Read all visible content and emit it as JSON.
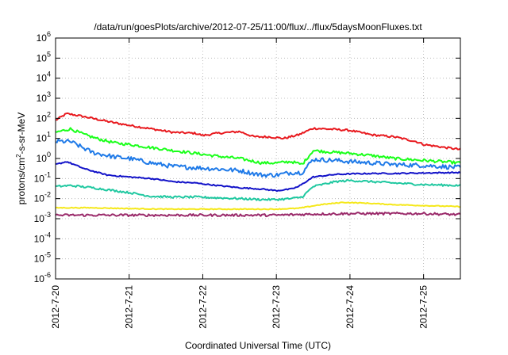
{
  "chart_data": {
    "type": "line",
    "title": "/data/run/goesPlots/archive/2012-07-25/11:00/flux/../flux/5daysMoonFluxes.txt",
    "xlabel": "Coordinated Universal Time (UTC)",
    "ylabel": {
      "prefix": "protons/cm",
      "sup": "2",
      "suffix": "-s-sr-MeV"
    },
    "xlim": [
      0,
      5.5
    ],
    "ylim_exponent": [
      -6,
      6
    ],
    "yscale": "log",
    "grid": true,
    "x_ticks": [
      {
        "x": 0,
        "label": "2012-7-20"
      },
      {
        "x": 1,
        "label": "2012-7-21"
      },
      {
        "x": 2,
        "label": "2012-7-22"
      },
      {
        "x": 3,
        "label": "2012-7-23"
      },
      {
        "x": 4,
        "label": "2012-7-24"
      },
      {
        "x": 5,
        "label": "2012-7-25"
      }
    ],
    "y_ticks": [
      {
        "exp": -6,
        "label_base": "10",
        "label_exp": "-6"
      },
      {
        "exp": -5,
        "label_base": "10",
        "label_exp": "-5"
      },
      {
        "exp": -4,
        "label_base": "10",
        "label_exp": "-4"
      },
      {
        "exp": -3,
        "label_base": "10",
        "label_exp": "-3"
      },
      {
        "exp": -2,
        "label_base": "10",
        "label_exp": "-2"
      },
      {
        "exp": -1,
        "label_base": "10",
        "label_exp": "-1"
      },
      {
        "exp": 0,
        "label_base": "10",
        "label_exp": "0"
      },
      {
        "exp": 1,
        "label_base": "10",
        "label_exp": "1"
      },
      {
        "exp": 2,
        "label_base": "10",
        "label_exp": "2"
      },
      {
        "exp": 3,
        "label_base": "10",
        "label_exp": "3"
      },
      {
        "exp": 4,
        "label_base": "10",
        "label_exp": "4"
      },
      {
        "exp": 5,
        "label_base": "10",
        "label_exp": "5"
      },
      {
        "exp": 6,
        "label_base": "10",
        "label_exp": "6"
      }
    ],
    "series": [
      {
        "color": "#e8191e",
        "noise": 0.05,
        "x": [
          0,
          0.15,
          0.3,
          0.5,
          0.8,
          1.0,
          1.3,
          1.6,
          1.9,
          2.0,
          2.2,
          2.5,
          2.7,
          2.9,
          3.1,
          3.3,
          3.5,
          3.8,
          4.0,
          4.3,
          4.6,
          4.9,
          5.0,
          5.3,
          5.5
        ],
        "y": [
          80,
          170,
          140,
          100,
          60,
          45,
          30,
          20,
          18,
          14,
          18,
          22,
          12,
          12,
          10,
          15,
          32,
          28,
          25,
          15,
          12,
          7,
          5,
          3.5,
          2.8
        ]
      },
      {
        "color": "#1aff1a",
        "noise": 0.07,
        "x": [
          0,
          0.2,
          0.4,
          0.6,
          0.8,
          1.0,
          1.3,
          1.6,
          1.9,
          2.2,
          2.5,
          2.8,
          3.0,
          3.2,
          3.35,
          3.5,
          3.8,
          4.0,
          4.3,
          4.6,
          5.0,
          5.5
        ],
        "y": [
          20,
          30,
          15,
          9,
          6,
          5,
          3.5,
          2.5,
          1.8,
          1.3,
          1.0,
          0.6,
          0.6,
          0.7,
          0.5,
          2.5,
          2.0,
          1.8,
          1.4,
          1.0,
          0.8,
          0.6
        ]
      },
      {
        "color": "#1f7ae8",
        "noise": 0.11,
        "x": [
          0,
          0.2,
          0.5,
          0.8,
          1.0,
          1.3,
          1.6,
          1.9,
          2.2,
          2.5,
          2.8,
          3.0,
          3.2,
          3.35,
          3.5,
          3.8,
          4.0,
          4.3,
          4.6,
          5.0,
          5.5
        ],
        "y": [
          7,
          7,
          2,
          1.2,
          1.0,
          0.6,
          0.4,
          0.35,
          0.3,
          0.25,
          0.15,
          0.15,
          0.2,
          0.2,
          0.9,
          0.8,
          0.7,
          0.6,
          0.5,
          0.45,
          0.35
        ]
      },
      {
        "color": "#1111c8",
        "noise": 0.03,
        "x": [
          0,
          0.15,
          0.4,
          0.7,
          1.0,
          1.3,
          1.6,
          1.9,
          2.2,
          2.5,
          2.8,
          3.0,
          3.2,
          3.3,
          3.5,
          3.8,
          4.0,
          4.3,
          4.6,
          5.0,
          5.5
        ],
        "y": [
          0.5,
          0.7,
          0.3,
          0.15,
          0.12,
          0.1,
          0.07,
          0.06,
          0.045,
          0.035,
          0.03,
          0.025,
          0.03,
          0.04,
          0.12,
          0.16,
          0.17,
          0.18,
          0.18,
          0.19,
          0.2
        ]
      },
      {
        "color": "#1fc8a0",
        "noise": 0.05,
        "x": [
          0,
          0.2,
          0.5,
          0.8,
          1.0,
          1.3,
          1.6,
          1.9,
          2.2,
          2.5,
          2.8,
          3.0,
          3.2,
          3.35,
          3.5,
          3.8,
          4.0,
          4.3,
          4.6,
          5.0,
          5.5
        ],
        "y": [
          0.04,
          0.045,
          0.035,
          0.025,
          0.02,
          0.013,
          0.012,
          0.012,
          0.011,
          0.01,
          0.009,
          0.009,
          0.01,
          0.012,
          0.04,
          0.07,
          0.08,
          0.07,
          0.06,
          0.05,
          0.045
        ]
      },
      {
        "color": "#f5e81a",
        "noise": 0.02,
        "x": [
          0,
          0.5,
          1.0,
          1.5,
          2.0,
          2.5,
          3.0,
          3.3,
          3.6,
          3.9,
          4.2,
          4.6,
          5.0,
          5.5
        ],
        "y": [
          0.0035,
          0.0035,
          0.0032,
          0.003,
          0.003,
          0.003,
          0.003,
          0.0033,
          0.005,
          0.0065,
          0.006,
          0.005,
          0.0045,
          0.004
        ]
      },
      {
        "color": "#9a2a6a",
        "noise": 0.06,
        "x": [
          0,
          0.5,
          1.0,
          1.5,
          2.0,
          2.5,
          3.0,
          3.5,
          4.0,
          4.5,
          5.0,
          5.5
        ],
        "y": [
          0.0015,
          0.0015,
          0.0015,
          0.0015,
          0.0015,
          0.0015,
          0.0015,
          0.0017,
          0.0018,
          0.0018,
          0.0018,
          0.0016
        ]
      }
    ]
  }
}
